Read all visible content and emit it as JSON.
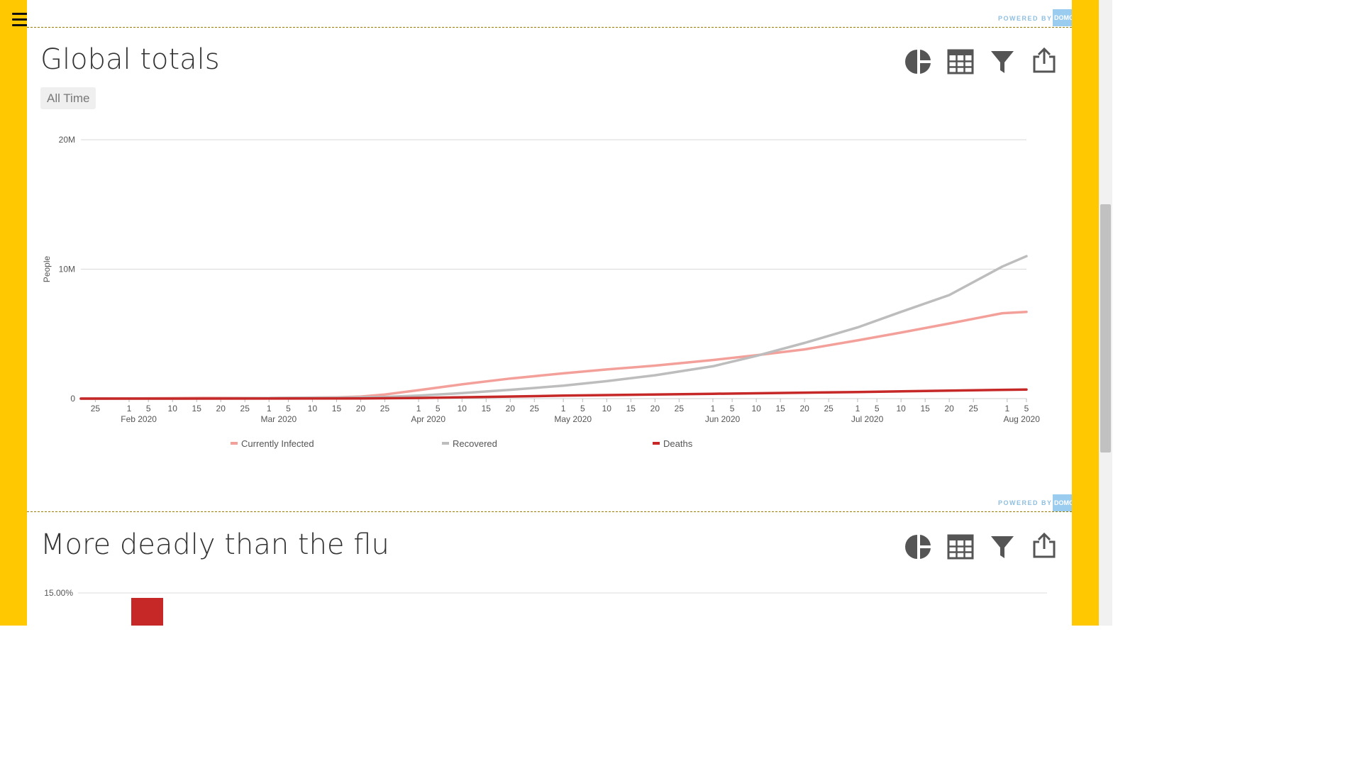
{
  "powered_by": "POWERED BY",
  "logo_text": "DOMO",
  "card1": {
    "title": "Global totals",
    "filter_chip": "All Time"
  },
  "card2": {
    "title": "More deadly than the flu",
    "y_top_label": "15.00%"
  },
  "chart_data": [
    {
      "type": "line",
      "ylabel": "People",
      "ylim": [
        0,
        20000000
      ],
      "yticks": [
        {
          "v": 0,
          "label": "0"
        },
        {
          "v": 10000000,
          "label": "10M"
        },
        {
          "v": 20000000,
          "label": "20M"
        }
      ],
      "xlim": [
        "2020-01-22",
        "2020-08-05"
      ],
      "x_day_ticks": [
        {
          "d": "2020-01-25",
          "label": "25"
        },
        {
          "d": "2020-02-01",
          "label": "1"
        },
        {
          "d": "2020-02-05",
          "label": "5"
        },
        {
          "d": "2020-02-10",
          "label": "10"
        },
        {
          "d": "2020-02-15",
          "label": "15"
        },
        {
          "d": "2020-02-20",
          "label": "20"
        },
        {
          "d": "2020-02-25",
          "label": "25"
        },
        {
          "d": "2020-03-01",
          "label": "1"
        },
        {
          "d": "2020-03-05",
          "label": "5"
        },
        {
          "d": "2020-03-10",
          "label": "10"
        },
        {
          "d": "2020-03-15",
          "label": "15"
        },
        {
          "d": "2020-03-20",
          "label": "20"
        },
        {
          "d": "2020-03-25",
          "label": "25"
        },
        {
          "d": "2020-04-01",
          "label": "1"
        },
        {
          "d": "2020-04-05",
          "label": "5"
        },
        {
          "d": "2020-04-10",
          "label": "10"
        },
        {
          "d": "2020-04-15",
          "label": "15"
        },
        {
          "d": "2020-04-20",
          "label": "20"
        },
        {
          "d": "2020-04-25",
          "label": "25"
        },
        {
          "d": "2020-05-01",
          "label": "1"
        },
        {
          "d": "2020-05-05",
          "label": "5"
        },
        {
          "d": "2020-05-10",
          "label": "10"
        },
        {
          "d": "2020-05-15",
          "label": "15"
        },
        {
          "d": "2020-05-20",
          "label": "20"
        },
        {
          "d": "2020-05-25",
          "label": "25"
        },
        {
          "d": "2020-06-01",
          "label": "1"
        },
        {
          "d": "2020-06-05",
          "label": "5"
        },
        {
          "d": "2020-06-10",
          "label": "10"
        },
        {
          "d": "2020-06-15",
          "label": "15"
        },
        {
          "d": "2020-06-20",
          "label": "20"
        },
        {
          "d": "2020-06-25",
          "label": "25"
        },
        {
          "d": "2020-07-01",
          "label": "1"
        },
        {
          "d": "2020-07-05",
          "label": "5"
        },
        {
          "d": "2020-07-10",
          "label": "10"
        },
        {
          "d": "2020-07-15",
          "label": "15"
        },
        {
          "d": "2020-07-20",
          "label": "20"
        },
        {
          "d": "2020-07-25",
          "label": "25"
        },
        {
          "d": "2020-08-01",
          "label": "1"
        },
        {
          "d": "2020-08-05",
          "label": "5"
        }
      ],
      "x_month_labels": [
        {
          "d": "2020-02-03",
          "label": "Feb 2020"
        },
        {
          "d": "2020-03-03",
          "label": "Mar 2020"
        },
        {
          "d": "2020-04-03",
          "label": "Apr 2020"
        },
        {
          "d": "2020-05-03",
          "label": "May 2020"
        },
        {
          "d": "2020-06-03",
          "label": "Jun 2020"
        },
        {
          "d": "2020-07-03",
          "label": "Jul 2020"
        },
        {
          "d": "2020-08-04",
          "label": "Aug 2020"
        }
      ],
      "series": [
        {
          "name": "Currently Infected",
          "color": "#F4A09A",
          "points": [
            [
              "2020-01-22",
              500
            ],
            [
              "2020-02-01",
              10000
            ],
            [
              "2020-02-10",
              35000
            ],
            [
              "2020-02-17",
              55000
            ],
            [
              "2020-03-01",
              45000
            ],
            [
              "2020-03-15",
              100000
            ],
            [
              "2020-03-20",
              160000
            ],
            [
              "2020-03-25",
              320000
            ],
            [
              "2020-04-01",
              650000
            ],
            [
              "2020-04-10",
              1100000
            ],
            [
              "2020-04-20",
              1550000
            ],
            [
              "2020-05-01",
              1950000
            ],
            [
              "2020-05-10",
              2250000
            ],
            [
              "2020-05-20",
              2550000
            ],
            [
              "2020-06-01",
              2980000
            ],
            [
              "2020-06-10",
              3350000
            ],
            [
              "2020-06-20",
              3800000
            ],
            [
              "2020-07-01",
              4500000
            ],
            [
              "2020-07-10",
              5100000
            ],
            [
              "2020-07-20",
              5800000
            ],
            [
              "2020-07-31",
              6600000
            ],
            [
              "2020-08-05",
              6700000
            ]
          ]
        },
        {
          "name": "Recovered",
          "color": "#BDBDBD",
          "points": [
            [
              "2020-01-22",
              0
            ],
            [
              "2020-02-15",
              10000
            ],
            [
              "2020-03-01",
              45000
            ],
            [
              "2020-03-15",
              80000
            ],
            [
              "2020-03-25",
              130000
            ],
            [
              "2020-04-01",
              230000
            ],
            [
              "2020-04-10",
              420000
            ],
            [
              "2020-04-20",
              680000
            ],
            [
              "2020-05-01",
              1000000
            ],
            [
              "2020-05-10",
              1350000
            ],
            [
              "2020-05-20",
              1800000
            ],
            [
              "2020-06-01",
              2500000
            ],
            [
              "2020-06-10",
              3300000
            ],
            [
              "2020-06-20",
              4300000
            ],
            [
              "2020-07-01",
              5500000
            ],
            [
              "2020-07-10",
              6700000
            ],
            [
              "2020-07-20",
              8000000
            ],
            [
              "2020-07-31",
              10200000
            ],
            [
              "2020-08-05",
              11000000
            ]
          ]
        },
        {
          "name": "Deaths",
          "color": "#C62828",
          "points": [
            [
              "2020-01-22",
              0
            ],
            [
              "2020-03-01",
              3000
            ],
            [
              "2020-03-20",
              11000
            ],
            [
              "2020-04-01",
              47000
            ],
            [
              "2020-04-15",
              130000
            ],
            [
              "2020-05-01",
              230000
            ],
            [
              "2020-06-01",
              375000
            ],
            [
              "2020-07-01",
              510000
            ],
            [
              "2020-08-05",
              700000
            ]
          ]
        }
      ]
    },
    {
      "type": "bar",
      "ylim": [
        0,
        15
      ],
      "yticks": [
        {
          "v": 15,
          "label": "15.00%"
        }
      ],
      "series": [
        {
          "color": "#C62828"
        }
      ]
    }
  ]
}
